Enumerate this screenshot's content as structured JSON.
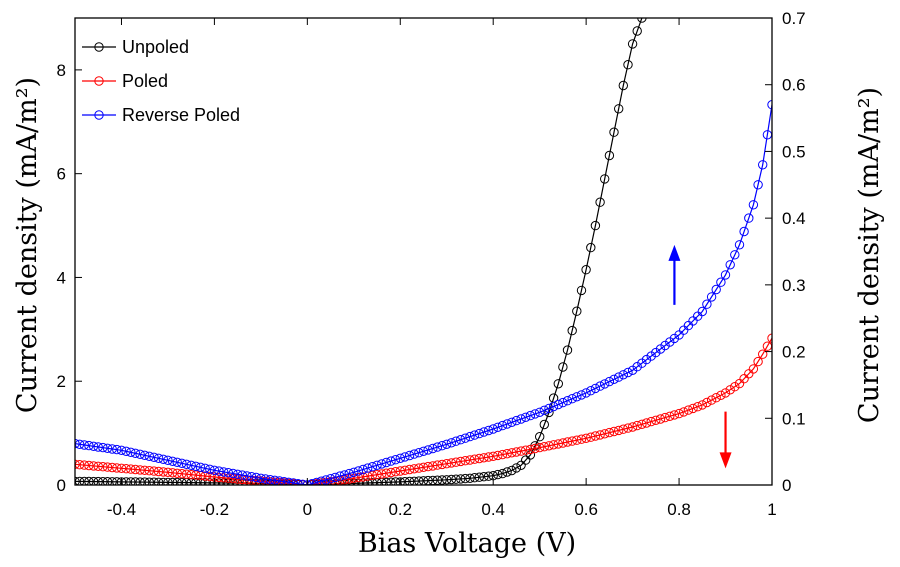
{
  "chart_data": {
    "type": "line",
    "xlabel": "Bias Voltage (V)",
    "ylabel_left": "Current density (mA/m²)",
    "ylabel_right": "Current density (mA/m²)",
    "xlim": [
      -0.5,
      1
    ],
    "ylim_left": [
      0,
      9
    ],
    "ylim_right": [
      0,
      0.7
    ],
    "x_ticks": [
      -0.4,
      -0.2,
      0,
      0.2,
      0.4,
      0.6,
      0.8,
      1
    ],
    "x_tick_labels": [
      "-0.4",
      "-0.2",
      "0",
      "0.2",
      "0.4",
      "0.6",
      "0.8",
      "1"
    ],
    "y_left_ticks": [
      0,
      2,
      4,
      6,
      8
    ],
    "y_left_tick_labels": [
      "0",
      "2",
      "4",
      "6",
      "8"
    ],
    "y_right_ticks": [
      0,
      0.1,
      0.2,
      0.3,
      0.4,
      0.5,
      0.6,
      0.7
    ],
    "y_right_tick_labels": [
      "0",
      "0.1",
      "0.2",
      "0.3",
      "0.4",
      "0.5",
      "0.6",
      "0.7"
    ],
    "grid": false,
    "legend_position": "top-left",
    "series": [
      {
        "name": "Unpoled",
        "axis": "left",
        "color": "#000000",
        "x": [
          -0.5,
          -0.4,
          -0.3,
          -0.2,
          -0.1,
          0,
          0.1,
          0.2,
          0.3,
          0.35,
          0.4,
          0.42,
          0.44,
          0.46,
          0.48,
          0.5,
          0.52,
          0.54,
          0.56,
          0.58,
          0.6,
          0.62,
          0.64,
          0.66,
          0.68,
          0.7,
          0.72
        ],
        "y": [
          0.07,
          0.06,
          0.05,
          0.04,
          0.03,
          0.0,
          0.03,
          0.06,
          0.1,
          0.13,
          0.18,
          0.22,
          0.28,
          0.38,
          0.58,
          0.93,
          1.4,
          1.95,
          2.6,
          3.35,
          4.15,
          5.0,
          5.9,
          6.8,
          7.7,
          8.5,
          9.0
        ]
      },
      {
        "name": "Poled",
        "axis": "right",
        "color": "#ff0000",
        "x": [
          -0.5,
          -0.4,
          -0.3,
          -0.2,
          -0.1,
          0,
          0.1,
          0.2,
          0.3,
          0.4,
          0.5,
          0.6,
          0.7,
          0.8,
          0.85,
          0.9,
          0.93,
          0.96,
          0.98,
          1.0
        ],
        "y": [
          0.031,
          0.025,
          0.019,
          0.012,
          0.006,
          0.0,
          0.01,
          0.021,
          0.032,
          0.043,
          0.056,
          0.07,
          0.087,
          0.107,
          0.12,
          0.138,
          0.152,
          0.174,
          0.196,
          0.22
        ]
      },
      {
        "name": "Reverse Poled",
        "axis": "right",
        "color": "#0000ff",
        "x": [
          -0.5,
          -0.4,
          -0.3,
          -0.2,
          -0.1,
          0,
          0.1,
          0.2,
          0.3,
          0.4,
          0.5,
          0.6,
          0.7,
          0.8,
          0.85,
          0.9,
          0.93,
          0.96,
          0.98,
          1.0
        ],
        "y": [
          0.062,
          0.052,
          0.037,
          0.022,
          0.01,
          0.0,
          0.019,
          0.04,
          0.061,
          0.084,
          0.109,
          0.138,
          0.172,
          0.225,
          0.26,
          0.315,
          0.36,
          0.42,
          0.48,
          0.57
        ]
      }
    ],
    "annotations": [
      {
        "type": "arrow",
        "direction": "up",
        "color": "#0000ff",
        "x": 0.79,
        "y_from": 0.27,
        "y_to": 0.36,
        "axis": "right"
      },
      {
        "type": "arrow",
        "direction": "down",
        "color": "#ff0000",
        "x": 0.9,
        "y_from": 0.11,
        "y_to": 0.025,
        "axis": "right"
      }
    ]
  }
}
